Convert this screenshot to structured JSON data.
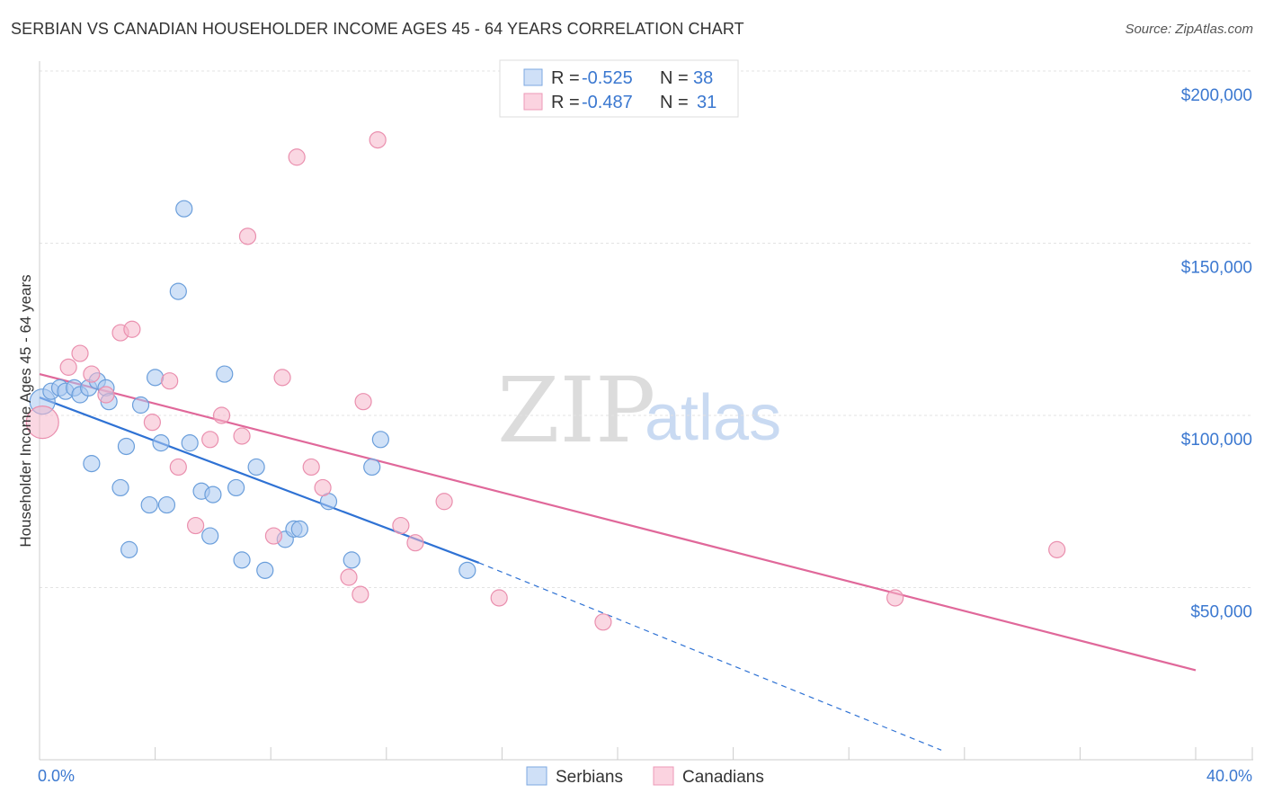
{
  "header": {
    "title": "SERBIAN VS CANADIAN HOUSEHOLDER INCOME AGES 45 - 64 YEARS CORRELATION CHART",
    "source": "Source: ZipAtlas.com"
  },
  "watermark": {
    "zip": "ZIP",
    "atlas": "atlas"
  },
  "legend": {
    "rows": [
      {
        "r_label": "R =",
        "r_value": "-0.525",
        "n_label": "N =",
        "n_value": "38",
        "color": "#a9c8f0"
      },
      {
        "r_label": "R =",
        "r_value": "-0.487",
        "n_label": "N =",
        "n_value": "31",
        "color": "#f6b7cb"
      }
    ]
  },
  "bottom_legend": {
    "series1": "Serbians",
    "series2": "Canadians"
  },
  "chart_data": {
    "type": "scatter",
    "title": "SERBIAN VS CANADIAN HOUSEHOLDER INCOME AGES 45 - 64 YEARS CORRELATION CHART",
    "xlabel": "",
    "ylabel": "Householder Income Ages 45 - 64 years",
    "xlim": [
      0,
      40
    ],
    "ylim": [
      0,
      200000
    ],
    "x_tick_labels": [
      "0.0%",
      "40.0%"
    ],
    "y_ticks": [
      50000,
      100000,
      150000,
      200000
    ],
    "y_tick_labels": [
      "$50,000",
      "$100,000",
      "$150,000",
      "$200,000"
    ],
    "grid": true,
    "series": [
      {
        "name": "Serbians",
        "color": "#a9c8f0",
        "stroke": "#6a9edb",
        "line_color": "#2f72d4",
        "trend": {
          "x0": 0,
          "y0": 105200,
          "x1": 15.2,
          "y1": 57200,
          "dash_to_x": 31.2,
          "dash_to_y": 2800
        },
        "points": [
          [
            0.1,
            104000
          ],
          [
            0.4,
            107000
          ],
          [
            0.7,
            108000
          ],
          [
            0.9,
            107000
          ],
          [
            1.2,
            108000
          ],
          [
            1.4,
            106000
          ],
          [
            1.7,
            108000
          ],
          [
            2.0,
            110000
          ],
          [
            2.3,
            108000
          ],
          [
            2.4,
            104000
          ],
          [
            1.8,
            86000
          ],
          [
            2.8,
            79000
          ],
          [
            3.0,
            91000
          ],
          [
            3.5,
            103000
          ],
          [
            3.8,
            74000
          ],
          [
            4.0,
            111000
          ],
          [
            4.2,
            92000
          ],
          [
            4.4,
            74000
          ],
          [
            4.8,
            136000
          ],
          [
            5.0,
            160000
          ],
          [
            5.2,
            92000
          ],
          [
            5.6,
            78000
          ],
          [
            5.9,
            65000
          ],
          [
            6.0,
            77000
          ],
          [
            6.4,
            112000
          ],
          [
            6.8,
            79000
          ],
          [
            7.0,
            58000
          ],
          [
            7.5,
            85000
          ],
          [
            7.8,
            55000
          ],
          [
            8.5,
            64000
          ],
          [
            8.8,
            67000
          ],
          [
            9.0,
            67000
          ],
          [
            10.0,
            75000
          ],
          [
            10.8,
            58000
          ],
          [
            11.5,
            85000
          ],
          [
            11.8,
            93000
          ],
          [
            14.8,
            55000
          ],
          [
            3.1,
            61000
          ]
        ]
      },
      {
        "name": "Canadians",
        "color": "#f6b7cb",
        "stroke": "#ea8fae",
        "line_color": "#e0689a",
        "trend": {
          "x0": 0,
          "y0": 112000,
          "x1": 40,
          "y1": 26000
        },
        "points": [
          [
            0.1,
            98000
          ],
          [
            1.0,
            114000
          ],
          [
            1.4,
            118000
          ],
          [
            1.8,
            112000
          ],
          [
            2.3,
            106000
          ],
          [
            2.8,
            124000
          ],
          [
            3.2,
            125000
          ],
          [
            3.9,
            98000
          ],
          [
            4.5,
            110000
          ],
          [
            4.8,
            85000
          ],
          [
            5.4,
            68000
          ],
          [
            5.9,
            93000
          ],
          [
            6.3,
            100000
          ],
          [
            7.0,
            94000
          ],
          [
            7.2,
            152000
          ],
          [
            8.1,
            65000
          ],
          [
            8.4,
            111000
          ],
          [
            8.9,
            175000
          ],
          [
            9.4,
            85000
          ],
          [
            9.8,
            79000
          ],
          [
            10.7,
            53000
          ],
          [
            11.1,
            48000
          ],
          [
            11.2,
            104000
          ],
          [
            11.7,
            180000
          ],
          [
            12.5,
            68000
          ],
          [
            13.0,
            63000
          ],
          [
            14.0,
            75000
          ],
          [
            15.9,
            47000
          ],
          [
            19.5,
            40000
          ],
          [
            29.6,
            47000
          ],
          [
            35.2,
            61000
          ]
        ]
      }
    ]
  }
}
